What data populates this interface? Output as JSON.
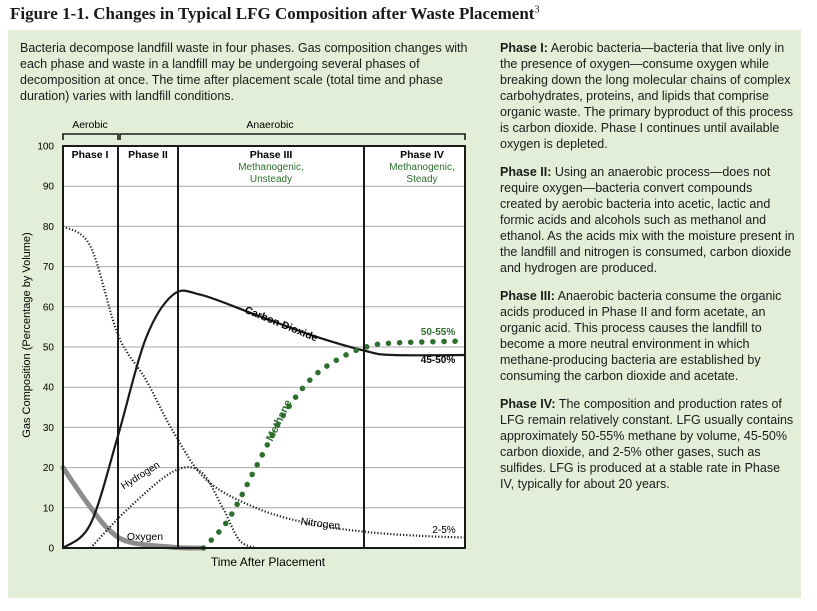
{
  "figure": {
    "title": "Figure 1-1. Changes in Typical LFG Composition after Waste Placement",
    "footnote_ref": "3"
  },
  "intro": "Bacteria decompose landfill waste in four phases. Gas composition changes with each phase and waste in a landfill may be undergoing several phases of decomposition at once. The time after placement scale (total time and phase duration) varies with landfill conditions.",
  "phase_descriptions": [
    {
      "heading": "Phase I:",
      "text": "Aerobic bacteria—bacteria that live only in the presence of oxygen—consume oxygen while breaking down the long molecular chains of complex carbohydrates, proteins, and lipids that comprise organic waste. The primary byproduct of this process is carbon dioxide. Phase I continues until available oxygen is depleted."
    },
    {
      "heading": "Phase II:",
      "text": "Using an anaerobic process—does not require oxygen—bacteria convert compounds created by aerobic bacteria into acetic, lactic and formic acids and alcohols such as methanol and ethanol. As the acids mix with the moisture present in the landfill and nitrogen is consumed, carbon dioxide and hydrogen are produced."
    },
    {
      "heading": "Phase III:",
      "text": "Anaerobic bacteria consume the organic acids produced in Phase II and form acetate, an organic acid. This process causes the landfill to become a more neutral environment in which methane-producing bacteria are established by consuming the carbon dioxide and acetate."
    },
    {
      "heading": "Phase IV:",
      "text": "The composition and production rates of LFG remain relatively constant. LFG usually contains approximately 50-55% methane by volume, 45-50% carbon dioxide, and 2-5% other gases, such as sulfides. LFG is produced at a stable rate in Phase IV, typically for about 20 years."
    }
  ],
  "chart_data": {
    "type": "line",
    "ylabel": "Gas Composition (Percentage by Volume)",
    "xlabel": "Time After Placement",
    "ylim": [
      0,
      100
    ],
    "yticks": [
      "0",
      "10",
      "20",
      "30",
      "40",
      "50",
      "60",
      "70",
      "80",
      "90",
      "100"
    ],
    "conditions": [
      {
        "label": "Aerobic",
        "phases": [
          "Phase I"
        ]
      },
      {
        "label": "Anaerobic",
        "phases": [
          "Phase II",
          "Phase III",
          "Phase IV"
        ]
      }
    ],
    "phases": [
      {
        "label": "Phase I",
        "sub1": "",
        "sub2": ""
      },
      {
        "label": "Phase II",
        "sub1": "",
        "sub2": ""
      },
      {
        "label": "Phase III",
        "sub1": "Methanogenic,",
        "sub2": "Unsteady"
      },
      {
        "label": "Phase IV",
        "sub1": "Methanogenic,",
        "sub2": "Steady"
      }
    ],
    "series": [
      {
        "name": "Nitrogen",
        "style": "dotted",
        "color": "#1a1a1a",
        "points": [
          [
            0,
            80
          ],
          [
            0.5,
            75
          ],
          [
            1,
            53
          ],
          [
            1.5,
            42
          ],
          [
            2,
            29
          ],
          [
            2.6,
            17
          ],
          [
            3.5,
            10
          ],
          [
            4.5,
            6
          ],
          [
            5.5,
            4
          ],
          [
            6.5,
            3
          ],
          [
            7.3,
            2.6
          ]
        ]
      },
      {
        "name": "Oxygen",
        "style": "thick-gray",
        "color": "#8c8c8c",
        "points": [
          [
            0,
            20
          ],
          [
            0.4,
            12
          ],
          [
            0.8,
            5
          ],
          [
            1.2,
            1.5
          ],
          [
            2,
            0.2
          ],
          [
            2.5,
            0
          ]
        ]
      },
      {
        "name": "Hydrogen",
        "style": "dotted",
        "color": "#1a1a1a",
        "points": [
          [
            0.5,
            0
          ],
          [
            1.2,
            10
          ],
          [
            2,
            19
          ],
          [
            2.5,
            19
          ],
          [
            2.9,
            10
          ],
          [
            3.2,
            2
          ],
          [
            3.5,
            0
          ]
        ]
      },
      {
        "name": "Carbon Dioxide",
        "style": "solid",
        "color": "#1a1a1a",
        "points": [
          [
            0,
            0
          ],
          [
            0.5,
            6
          ],
          [
            1,
            28
          ],
          [
            1.5,
            52
          ],
          [
            2,
            63
          ],
          [
            2.5,
            63
          ],
          [
            3.5,
            58
          ],
          [
            4.5,
            53
          ],
          [
            5.5,
            49
          ],
          [
            6,
            48
          ],
          [
            7.3,
            48
          ]
        ]
      },
      {
        "name": "Methane",
        "style": "green-dotted",
        "color": "#2e6e2e",
        "points": [
          [
            2.55,
            0
          ],
          [
            3,
            7
          ],
          [
            3.5,
            20
          ],
          [
            4,
            33
          ],
          [
            4.5,
            42
          ],
          [
            5,
            47
          ],
          [
            5.5,
            50
          ],
          [
            6,
            51
          ],
          [
            7.3,
            51.5
          ]
        ]
      }
    ],
    "annotations": [
      {
        "text": "50-55%",
        "color": "#2e6e2e"
      },
      {
        "text": "45-50%",
        "color": "#1a1a1a"
      },
      {
        "text": "2-5%",
        "color": "#1a1a1a"
      }
    ],
    "colors": {
      "panel": "#e3eed9",
      "plot_bg": "#ffffff",
      "methane": "#2e6e2e",
      "oxygen": "#8c8c8c",
      "grid": "#a8a8a8"
    }
  }
}
